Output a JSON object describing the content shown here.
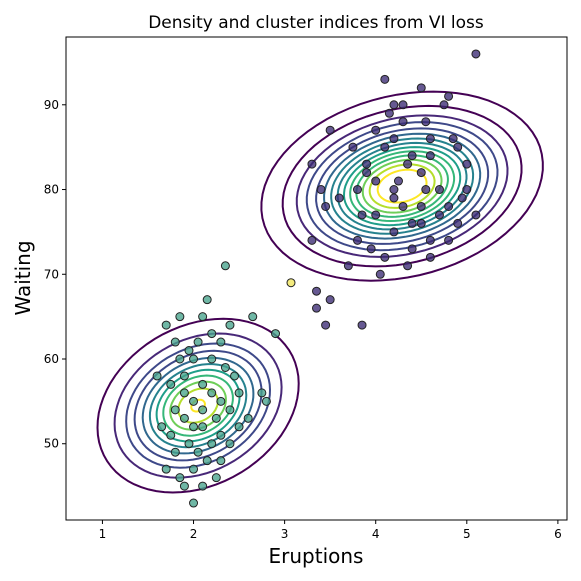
{
  "chart_data": {
    "type": "scatter",
    "title": "Density and cluster indices from VI loss",
    "xlabel": "Eruptions",
    "ylabel": "Waiting",
    "xlim": [
      0.6,
      6.1
    ],
    "ylim": [
      41,
      98
    ],
    "xticks": [
      "1",
      "2",
      "3",
      "4",
      "5",
      "6"
    ],
    "yticks": [
      "50",
      "60",
      "70",
      "80",
      "90"
    ],
    "grid": false,
    "colormap": "viridis",
    "marker_edge_color": "#222222",
    "clusters": [
      {
        "index": 0,
        "color": "#3b2a73",
        "points": [
          [
            3.6,
            79
          ],
          [
            3.8,
            74
          ],
          [
            3.9,
            83
          ],
          [
            4.0,
            87
          ],
          [
            4.1,
            85
          ],
          [
            4.2,
            90
          ],
          [
            4.3,
            88
          ],
          [
            4.4,
            84
          ],
          [
            4.5,
            82
          ],
          [
            4.6,
            86
          ],
          [
            4.7,
            80
          ],
          [
            4.8,
            78
          ],
          [
            4.9,
            76
          ],
          [
            5.0,
            80
          ],
          [
            5.1,
            77
          ],
          [
            4.0,
            77
          ],
          [
            4.2,
            75
          ],
          [
            4.4,
            73
          ],
          [
            4.6,
            72
          ],
          [
            3.4,
            80
          ],
          [
            3.7,
            71
          ],
          [
            4.1,
            93
          ],
          [
            4.5,
            92
          ],
          [
            4.8,
            91
          ],
          [
            5.1,
            96
          ],
          [
            4.3,
            90
          ],
          [
            3.9,
            82
          ],
          [
            4.2,
            80
          ],
          [
            4.6,
            84
          ],
          [
            4.5,
            78
          ],
          [
            4.8,
            74
          ],
          [
            3.5,
            87
          ],
          [
            3.3,
            83
          ],
          [
            3.45,
            78
          ],
          [
            3.3,
            74
          ],
          [
            3.35,
            66
          ],
          [
            3.45,
            64
          ],
          [
            3.85,
            64
          ],
          [
            3.5,
            67
          ],
          [
            3.35,
            68
          ],
          [
            4.75,
            90
          ],
          [
            4.9,
            85
          ],
          [
            4.05,
            70
          ],
          [
            4.2,
            79
          ],
          [
            4.0,
            81
          ],
          [
            4.4,
            76
          ],
          [
            4.35,
            71
          ],
          [
            3.95,
            73
          ],
          [
            4.15,
            89
          ],
          [
            4.55,
            88
          ],
          [
            4.85,
            86
          ],
          [
            5.0,
            83
          ],
          [
            4.6,
            74
          ],
          [
            3.75,
            85
          ],
          [
            3.8,
            80
          ],
          [
            4.25,
            81
          ],
          [
            4.35,
            83
          ],
          [
            4.55,
            80
          ],
          [
            4.7,
            77
          ],
          [
            3.85,
            77
          ],
          [
            4.1,
            72
          ],
          [
            4.5,
            76
          ],
          [
            4.95,
            79
          ],
          [
            4.2,
            86
          ],
          [
            4.3,
            78
          ]
        ]
      },
      {
        "index": 1,
        "color": "#46a38c",
        "points": [
          [
            1.7,
            64
          ],
          [
            1.8,
            62
          ],
          [
            1.85,
            60
          ],
          [
            1.9,
            58
          ],
          [
            2.0,
            55
          ],
          [
            2.1,
            52
          ],
          [
            2.2,
            50
          ],
          [
            2.3,
            48
          ],
          [
            2.4,
            54
          ],
          [
            2.5,
            56
          ],
          [
            2.0,
            47
          ],
          [
            1.9,
            45
          ],
          [
            2.0,
            43
          ],
          [
            1.8,
            49
          ],
          [
            1.75,
            51
          ],
          [
            2.1,
            57
          ],
          [
            2.2,
            60
          ],
          [
            2.3,
            62
          ],
          [
            2.4,
            64
          ],
          [
            2.5,
            52
          ],
          [
            2.0,
            60
          ],
          [
            1.9,
            56
          ],
          [
            1.8,
            54
          ],
          [
            2.1,
            54
          ],
          [
            2.2,
            56
          ],
          [
            2.3,
            55
          ],
          [
            1.95,
            50
          ],
          [
            2.05,
            49
          ],
          [
            2.15,
            48
          ],
          [
            2.25,
            46
          ],
          [
            2.6,
            53
          ],
          [
            2.75,
            56
          ],
          [
            2.8,
            55
          ],
          [
            2.65,
            65
          ],
          [
            2.9,
            63
          ],
          [
            2.1,
            65
          ],
          [
            2.15,
            67
          ],
          [
            2.35,
            71
          ],
          [
            1.6,
            58
          ],
          [
            1.65,
            52
          ],
          [
            1.7,
            47
          ],
          [
            1.85,
            46
          ],
          [
            2.3,
            51
          ],
          [
            2.4,
            50
          ],
          [
            1.95,
            61
          ],
          [
            2.05,
            62
          ],
          [
            2.35,
            59
          ],
          [
            2.45,
            58
          ],
          [
            1.75,
            57
          ],
          [
            1.9,
            53
          ],
          [
            2.0,
            52
          ],
          [
            2.25,
            53
          ],
          [
            2.1,
            45
          ],
          [
            2.2,
            63
          ],
          [
            1.85,
            65
          ]
        ]
      },
      {
        "index": 2,
        "color": "#f1e65a",
        "points": [
          [
            3.07,
            69
          ]
        ]
      }
    ],
    "contours": {
      "colors": [
        "#440154",
        "#482878",
        "#3e4989",
        "#31688e",
        "#26828e",
        "#1f9e89",
        "#35b779",
        "#6ece58",
        "#b5de2b",
        "#fde725"
      ],
      "components": [
        {
          "cx": 4.29,
          "cy": 80.4,
          "sx": 0.41,
          "sy": 6.0,
          "rho": 0.22,
          "weight": 1.0
        },
        {
          "cx": 2.05,
          "cy": 54.5,
          "sx": 0.31,
          "sy": 5.8,
          "rho": 0.25,
          "weight": 0.7
        }
      ],
      "levels": [
        0.03,
        0.08,
        0.14,
        0.2,
        0.27,
        0.34,
        0.41,
        0.48,
        0.55,
        0.62,
        0.69,
        0.76,
        0.83,
        0.9
      ]
    }
  }
}
